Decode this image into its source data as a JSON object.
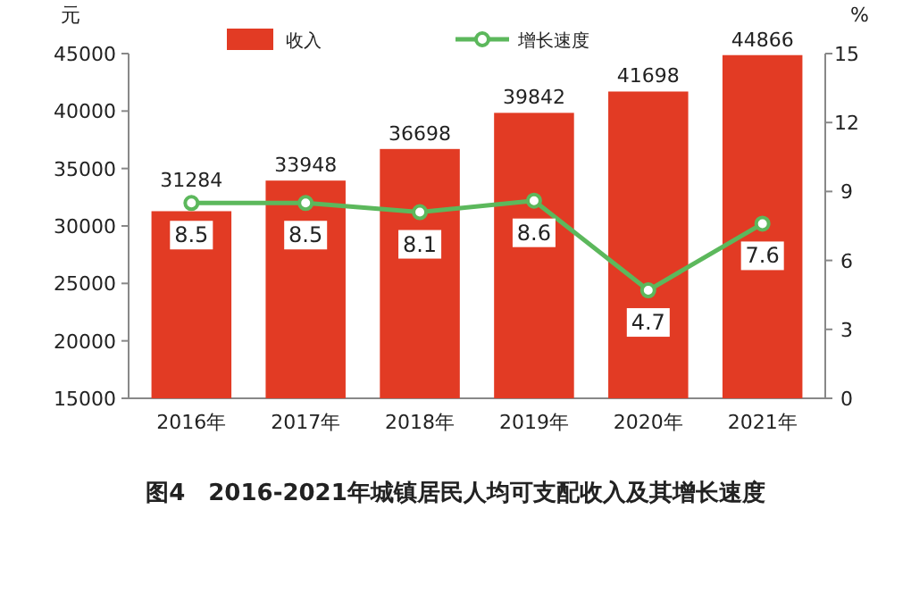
{
  "chart_data": {
    "type": "bar",
    "title": "图4　2016-2021年城镇居民人均可支配收入及其增长速度",
    "ylabel": "元",
    "y2label": "%",
    "categories": [
      "2016年",
      "2017年",
      "2018年",
      "2019年",
      "2020年",
      "2021年"
    ],
    "series": [
      {
        "name": "收入",
        "color": "#e23b24",
        "values": [
          31284,
          33948,
          36698,
          39842,
          41698,
          44866
        ]
      },
      {
        "type": "line",
        "name": "增长速度",
        "color": "#5cb85c",
        "axis": "y2",
        "values": [
          8.5,
          8.5,
          8.1,
          8.6,
          4.7,
          7.6
        ]
      }
    ],
    "ylim": [
      15000,
      45000
    ],
    "yticks": [
      15000,
      20000,
      25000,
      30000,
      35000,
      40000,
      45000
    ],
    "y2lim": [
      0,
      15
    ],
    "y2ticks": [
      0,
      3,
      6,
      9,
      12,
      15
    ],
    "data_labels": true,
    "legend": "top",
    "marker": "circle",
    "line_style": "solid",
    "grid": false
  }
}
